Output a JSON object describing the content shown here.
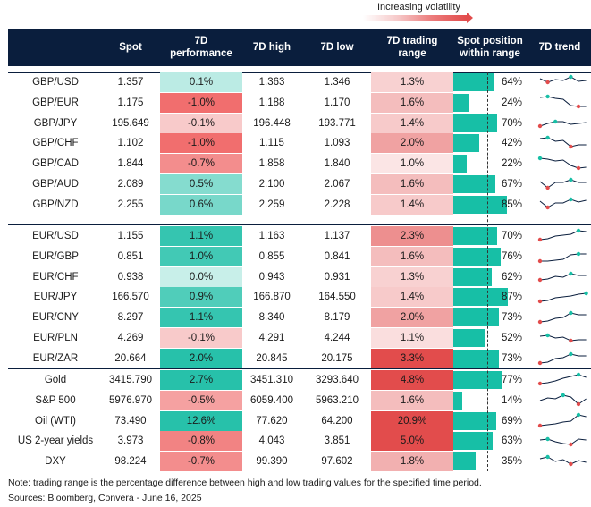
{
  "legend": {
    "label": "Increasing volatility"
  },
  "headers": {
    "spot": "Spot",
    "perf_line1": "7D",
    "perf_line2": "performance",
    "high": "7D high",
    "low": "7D low",
    "range_line1": "7D trading",
    "range_line2": "range",
    "pos_line1": "Spot position",
    "pos_line2": "within range",
    "trend": "7D trend"
  },
  "groups": [
    {
      "rows": [
        {
          "name": "GBP/USD",
          "spot": "1.357",
          "perf": "0.1%",
          "perf_v": 0.1,
          "high": "1.363",
          "low": "1.346",
          "range": "1.3%",
          "range_v": 1.3,
          "pos": "64%",
          "pos_v": 0.64,
          "trend": [
            7,
            11,
            8,
            9,
            5,
            10,
            9
          ]
        },
        {
          "name": "GBP/EUR",
          "spot": "1.175",
          "perf": "-1.0%",
          "perf_v": -1.0,
          "high": "1.188",
          "low": "1.170",
          "range": "1.6%",
          "range_v": 1.6,
          "pos": "24%",
          "pos_v": 0.24,
          "trend": [
            5,
            4,
            6,
            7,
            14,
            15,
            15
          ]
        },
        {
          "name": "GBP/JPY",
          "spot": "195.649",
          "perf": "-0.1%",
          "perf_v": -0.1,
          "high": "196.448",
          "low": "193.771",
          "range": "1.4%",
          "range_v": 1.4,
          "pos": "70%",
          "pos_v": 0.7,
          "trend": [
            14,
            11,
            9,
            9,
            12,
            11,
            10
          ]
        },
        {
          "name": "GBP/CHF",
          "spot": "1.102",
          "perf": "-1.0%",
          "perf_v": -1.0,
          "high": "1.115",
          "low": "1.093",
          "range": "2.0%",
          "range_v": 2.0,
          "pos": "42%",
          "pos_v": 0.42,
          "trend": [
            6,
            5,
            9,
            8,
            15,
            13,
            13
          ]
        },
        {
          "name": "GBP/CAD",
          "spot": "1.844",
          "perf": "-0.7%",
          "perf_v": -0.7,
          "high": "1.858",
          "low": "1.840",
          "range": "1.0%",
          "range_v": 1.0,
          "pos": "22%",
          "pos_v": 0.22,
          "trend": [
            5,
            6,
            8,
            7,
            13,
            16,
            15
          ]
        },
        {
          "name": "GBP/AUD",
          "spot": "2.089",
          "perf": "0.5%",
          "perf_v": 0.5,
          "high": "2.100",
          "low": "2.067",
          "range": "1.6%",
          "range_v": 1.6,
          "pos": "67%",
          "pos_v": 0.67,
          "trend": [
            8,
            15,
            9,
            9,
            6,
            9,
            9
          ]
        },
        {
          "name": "GBP/NZD",
          "spot": "2.255",
          "perf": "0.6%",
          "perf_v": 0.6,
          "high": "2.259",
          "low": "2.228",
          "range": "1.4%",
          "range_v": 1.4,
          "pos": "85%",
          "pos_v": 0.85,
          "trend": [
            7,
            14,
            9,
            9,
            5,
            8,
            6
          ]
        }
      ]
    },
    {
      "rows": [
        {
          "name": "EUR/USD",
          "spot": "1.155",
          "perf": "1.1%",
          "perf_v": 1.1,
          "high": "1.163",
          "low": "1.137",
          "range": "2.3%",
          "range_v": 2.3,
          "pos": "70%",
          "pos_v": 0.7,
          "trend": [
            15,
            14,
            11,
            10,
            9,
            5,
            6
          ]
        },
        {
          "name": "EUR/GBP",
          "spot": "0.851",
          "perf": "1.0%",
          "perf_v": 1.0,
          "high": "0.855",
          "low": "0.841",
          "range": "1.6%",
          "range_v": 1.6,
          "pos": "76%",
          "pos_v": 0.76,
          "trend": [
            16,
            16,
            15,
            14,
            9,
            8,
            8
          ]
        },
        {
          "name": "EUR/CHF",
          "spot": "0.938",
          "perf": "0.0%",
          "perf_v": 0.0,
          "high": "0.943",
          "low": "0.931",
          "range": "1.3%",
          "range_v": 1.3,
          "pos": "62%",
          "pos_v": 0.62,
          "trend": [
            14,
            13,
            10,
            11,
            7,
            9,
            9
          ]
        },
        {
          "name": "EUR/JPY",
          "spot": "166.570",
          "perf": "0.9%",
          "perf_v": 0.9,
          "high": "166.870",
          "low": "164.550",
          "range": "1.4%",
          "range_v": 1.4,
          "pos": "87%",
          "pos_v": 0.87,
          "trend": [
            16,
            15,
            12,
            11,
            10,
            8,
            7
          ]
        },
        {
          "name": "EUR/CNY",
          "spot": "8.297",
          "perf": "1.1%",
          "perf_v": 1.1,
          "high": "8.340",
          "low": "8.179",
          "range": "2.0%",
          "range_v": 2.0,
          "pos": "73%",
          "pos_v": 0.73,
          "trend": [
            16,
            15,
            12,
            11,
            6,
            8,
            8
          ]
        },
        {
          "name": "EUR/PLN",
          "spot": "4.269",
          "perf": "-0.1%",
          "perf_v": -0.1,
          "high": "4.291",
          "low": "4.244",
          "range": "1.1%",
          "range_v": 1.1,
          "pos": "52%",
          "pos_v": 0.52,
          "trend": [
            9,
            8,
            11,
            10,
            14,
            13,
            13
          ]
        },
        {
          "name": "EUR/ZAR",
          "spot": "20.664",
          "perf": "2.0%",
          "perf_v": 2.0,
          "high": "20.845",
          "low": "20.175",
          "range": "3.3%",
          "range_v": 3.3,
          "pos": "73%",
          "pos_v": 0.73,
          "trend": [
            16,
            15,
            11,
            10,
            6,
            8,
            8
          ]
        }
      ]
    },
    {
      "rows": [
        {
          "name": "Gold",
          "spot": "3415.790",
          "perf": "2.7%",
          "perf_v": 2.7,
          "high": "3451.310",
          "low": "3293.640",
          "range": "4.8%",
          "range_v": 4.8,
          "pos": "77%",
          "pos_v": 0.77,
          "trend": [
            15,
            14,
            12,
            9,
            7,
            5,
            8
          ]
        },
        {
          "name": "S&P 500",
          "spot": "5976.970",
          "perf": "-0.5%",
          "perf_v": -0.5,
          "high": "6059.400",
          "low": "5963.210",
          "range": "1.6%",
          "range_v": 1.6,
          "pos": "14%",
          "pos_v": 0.14,
          "trend": [
            11,
            8,
            9,
            5,
            7,
            15,
            9
          ]
        },
        {
          "name": "Oil (WTI)",
          "spot": "73.490",
          "perf": "12.6%",
          "perf_v": 12.6,
          "high": "77.620",
          "low": "64.200",
          "range": "20.9%",
          "range_v": 20.9,
          "pos": "69%",
          "pos_v": 0.69,
          "trend": [
            16,
            15,
            14,
            12,
            11,
            4,
            6
          ]
        },
        {
          "name": "US 2-year yields",
          "spot": "3.973",
          "perf": "-0.8%",
          "perf_v": -0.8,
          "high": "4.043",
          "low": "3.851",
          "range": "5.0%",
          "range_v": 5.0,
          "pos": "63%",
          "pos_v": 0.63,
          "trend": [
            10,
            9,
            12,
            14,
            15,
            9,
            10
          ]
        },
        {
          "name": "DXY",
          "spot": "98.224",
          "perf": "-0.7%",
          "perf_v": -0.7,
          "high": "99.390",
          "low": "97.602",
          "range": "1.8%",
          "range_v": 1.8,
          "pos": "35%",
          "pos_v": 0.35,
          "trend": [
            8,
            6,
            11,
            9,
            14,
            10,
            12
          ]
        }
      ]
    }
  ],
  "colors": {
    "header_bg": "#0a1e3d",
    "pos_bar": "#17bfa6",
    "perf_pos_strong": "#1fbfa7",
    "perf_pos_light": "#c8efe9",
    "perf_neg_strong": "#ef5a5a",
    "perf_neg_light": "#f9d4d4",
    "range_high": "#e24c4c",
    "range_low": "#fbe5e5",
    "trend_line": "#0a1e3d",
    "trend_hi": "#17bfa6",
    "trend_lo": "#e24c4c"
  },
  "footer": {
    "note": "Note: trading range is the percentage difference between high and low trading values for the specified time period.",
    "sources": "Sources: Bloomberg, Convera - June 16, 2025"
  }
}
